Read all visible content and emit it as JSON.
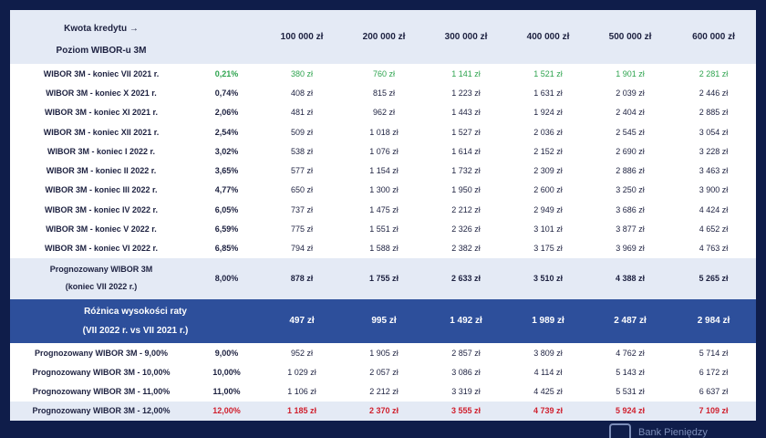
{
  "header": {
    "col_label_line1": "Kwota kredytu →",
    "col_label_line2": "Poziom WIBOR-u 3M",
    "amounts": [
      "100 000 zł",
      "200 000 zł",
      "300 000 zł",
      "400 000 zł",
      "500 000 zł",
      "600 000 zł"
    ]
  },
  "rows": [
    {
      "label": "WIBOR 3M - koniec VII 2021 r.",
      "wibor": "0,21%",
      "values": [
        "380 zł",
        "760 zł",
        "1 141 zł",
        "1 521 zł",
        "1 901 zł",
        "2 281 zł"
      ]
    },
    {
      "label": "WIBOR 3M - koniec X 2021 r.",
      "wibor": "0,74%",
      "values": [
        "408 zł",
        "815 zł",
        "1 223 zł",
        "1 631 zł",
        "2 039 zł",
        "2 446 zł"
      ]
    },
    {
      "label": "WIBOR 3M - koniec XI 2021 r.",
      "wibor": "2,06%",
      "values": [
        "481 zł",
        "962 zł",
        "1 443 zł",
        "1 924 zł",
        "2 404 zł",
        "2 885 zł"
      ]
    },
    {
      "label": "WIBOR 3M - koniec XII 2021 r.",
      "wibor": "2,54%",
      "values": [
        "509 zł",
        "1 018 zł",
        "1 527 zł",
        "2 036 zł",
        "2 545 zł",
        "3 054 zł"
      ]
    },
    {
      "label": "WIBOR 3M - koniec I 2022 r.",
      "wibor": "3,02%",
      "values": [
        "538 zł",
        "1 076 zł",
        "1 614 zł",
        "2 152 zł",
        "2 690 zł",
        "3 228 zł"
      ]
    },
    {
      "label": "WIBOR 3M - koniec II 2022 r.",
      "wibor": "3,65%",
      "values": [
        "577 zł",
        "1 154 zł",
        "1 732 zł",
        "2 309 zł",
        "2 886 zł",
        "3 463 zł"
      ]
    },
    {
      "label": "WIBOR 3M - koniec III 2022 r.",
      "wibor": "4,77%",
      "values": [
        "650 zł",
        "1 300 zł",
        "1 950 zł",
        "2 600 zł",
        "3 250 zł",
        "3 900 zł"
      ]
    },
    {
      "label": "WIBOR 3M - koniec IV 2022 r.",
      "wibor": "6,05%",
      "values": [
        "737 zł",
        "1 475 zł",
        "2 212 zł",
        "2 949 zł",
        "3 686 zł",
        "4 424 zł"
      ]
    },
    {
      "label": "WIBOR 3M - koniec V 2022 r.",
      "wibor": "6,59%",
      "values": [
        "775 zł",
        "1 551 zł",
        "2 326 zł",
        "3 101 zł",
        "3 877 zł",
        "4 652 zł"
      ]
    },
    {
      "label": "WIBOR 3M - koniec VI 2022 r.",
      "wibor": "6,85%",
      "values": [
        "794 zł",
        "1 588 zł",
        "2 382 zł",
        "3 175 zł",
        "3 969 zł",
        "4 763 zł"
      ]
    }
  ],
  "forecast": {
    "label_line1": "Prognozowany WIBOR 3M",
    "label_line2": "(koniec VII 2022 r.)",
    "wibor": "8,00%",
    "values": [
      "878 zł",
      "1 755 zł",
      "2 633 zł",
      "3 510 zł",
      "4 388 zł",
      "5 265 zł"
    ]
  },
  "difference": {
    "label_line1": "Różnica wysokości raty",
    "label_line2": "(VII 2022 r. vs VII 2021 r.)",
    "values": [
      "497 zł",
      "995 zł",
      "1 492 zł",
      "1 989 zł",
      "2 487 zł",
      "2 984 zł"
    ]
  },
  "projections": [
    {
      "label": "Prognozowany WIBOR 3M - 9,00%",
      "wibor": "9,00%",
      "values": [
        "952 zł",
        "1 905 zł",
        "2 857 zł",
        "3 809 zł",
        "4 762 zł",
        "5 714 zł"
      ]
    },
    {
      "label": "Prognozowany WIBOR 3M - 10,00%",
      "wibor": "10,00%",
      "values": [
        "1 029 zł",
        "2 057 zł",
        "3 086 zł",
        "4 114 zł",
        "5 143 zł",
        "6 172 zł"
      ]
    },
    {
      "label": "Prognozowany WIBOR 3M - 11,00%",
      "wibor": "11,00%",
      "values": [
        "1 106 zł",
        "2 212 zł",
        "3 319 zł",
        "4 425 zł",
        "5 531 zł",
        "6 637 zł"
      ]
    },
    {
      "label": "Prognozowany WIBOR 3M - 12,00%",
      "wibor": "12,00%",
      "values": [
        "1 185 zł",
        "2 370 zł",
        "3 555 zł",
        "4 739 zł",
        "5 924 zł",
        "7 109 zł"
      ]
    }
  ],
  "footer": {
    "brand_text": "Bank Pieniędzy"
  },
  "colors": {
    "background": "#0f1d4a",
    "header_bg": "#e4eaf5",
    "difference_bg": "#2d4f9b",
    "positive_green": "#2ea44f",
    "highlight_red": "#d0202e"
  }
}
